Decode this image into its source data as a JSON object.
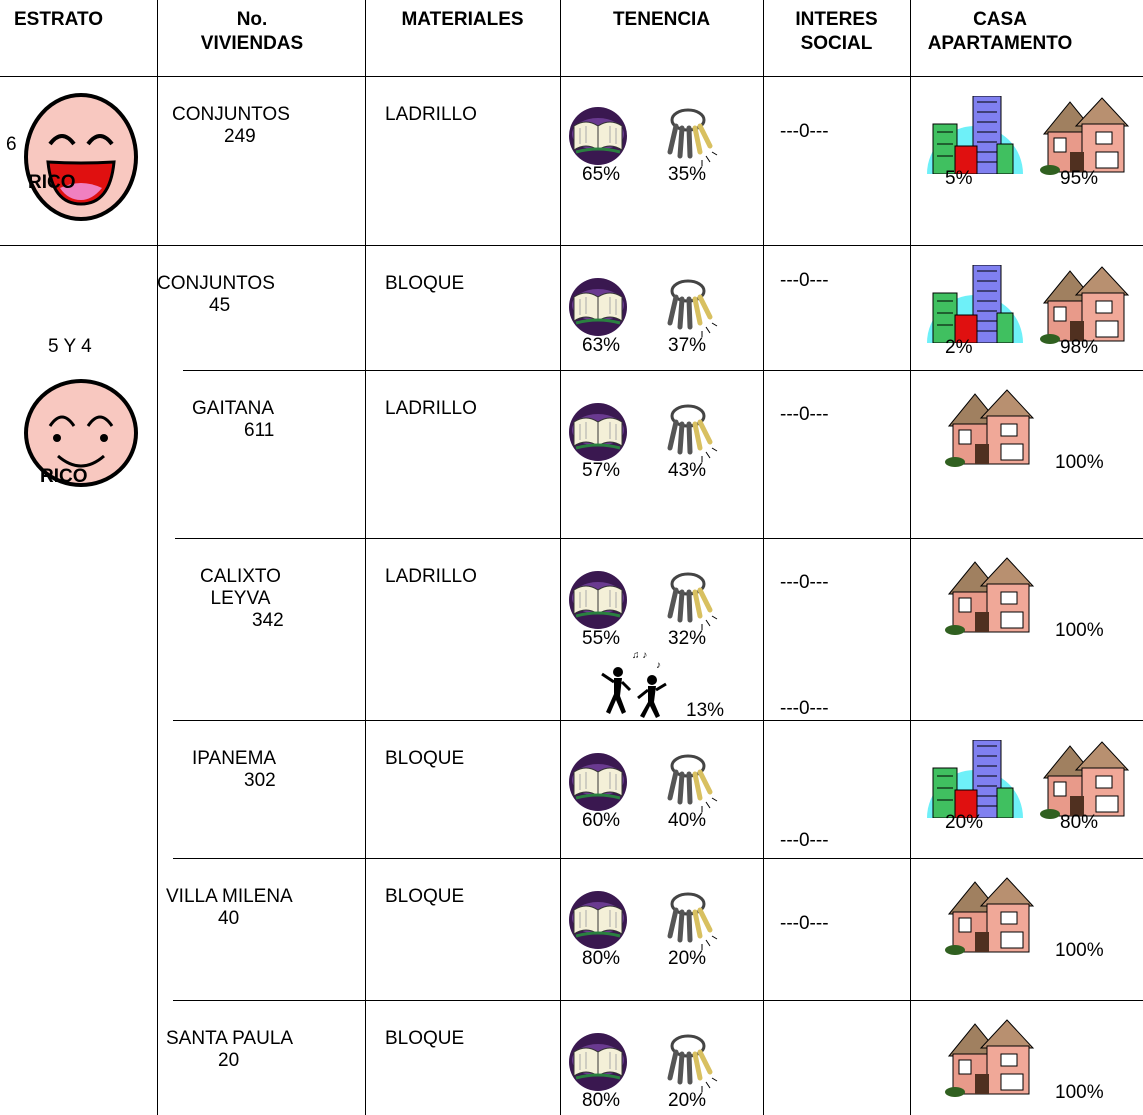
{
  "header": [
    "ESTRATO",
    "No.\nVIVIENDAS",
    "MATERIALES",
    "TENENCIA",
    "INTERES\nSOCIAL",
    "CASA\nAPARTAMENTO"
  ],
  "strata": [
    {
      "level": "6",
      "label": "RICO",
      "rows": [
        {
          "name": "CONJUNTOS",
          "count": "249",
          "material": "LADRILLO",
          "tenencia": {
            "propia": "65%",
            "arriendo": "35%"
          },
          "interes": [
            "---0---"
          ],
          "vivienda": {
            "apartamento": "5%",
            "casa": "95%"
          }
        }
      ]
    },
    {
      "level": "5 Y 4",
      "label": "RICO",
      "rows": [
        {
          "name": "CONJUNTOS",
          "count": "45",
          "material": "BLOQUE",
          "tenencia": {
            "propia": "63%",
            "arriendo": "37%"
          },
          "interes": [
            "---0---"
          ],
          "vivienda": {
            "apartamento": "2%",
            "casa": "98%"
          }
        },
        {
          "name": "GAITANA",
          "count": "611",
          "material": "LADRILLO",
          "tenencia": {
            "propia": "57%",
            "arriendo": "43%"
          },
          "interes": [
            "---0---"
          ],
          "vivienda": {
            "casa": "100%"
          }
        },
        {
          "name": "CALIXTO\nLEYVA",
          "count": "342",
          "material": "LADRILLO",
          "tenencia": {
            "propia": "55%",
            "arriendo": "32%",
            "otro": "13%"
          },
          "interes": [
            "---0---",
            "---0---"
          ],
          "vivienda": {
            "casa": "100%"
          }
        },
        {
          "name": "IPANEMA",
          "count": "302",
          "material": "BLOQUE",
          "tenencia": {
            "propia": "60%",
            "arriendo": "40%"
          },
          "interes": [
            "---0---"
          ],
          "vivienda": {
            "apartamento": "20%",
            "casa": "80%"
          }
        },
        {
          "name": "VILLA MILENA",
          "count": "40",
          "material": "BLOQUE",
          "tenencia": {
            "propia": "80%",
            "arriendo": "20%"
          },
          "interes": [
            "---0---"
          ],
          "vivienda": {
            "casa": "100%"
          }
        },
        {
          "name": "SANTA PAULA",
          "count": "20",
          "material": "BLOQUE",
          "tenencia": {
            "propia": "80%",
            "arriendo": "20%"
          },
          "interes": [],
          "vivienda": {
            "casa": "100%"
          }
        }
      ]
    }
  ]
}
